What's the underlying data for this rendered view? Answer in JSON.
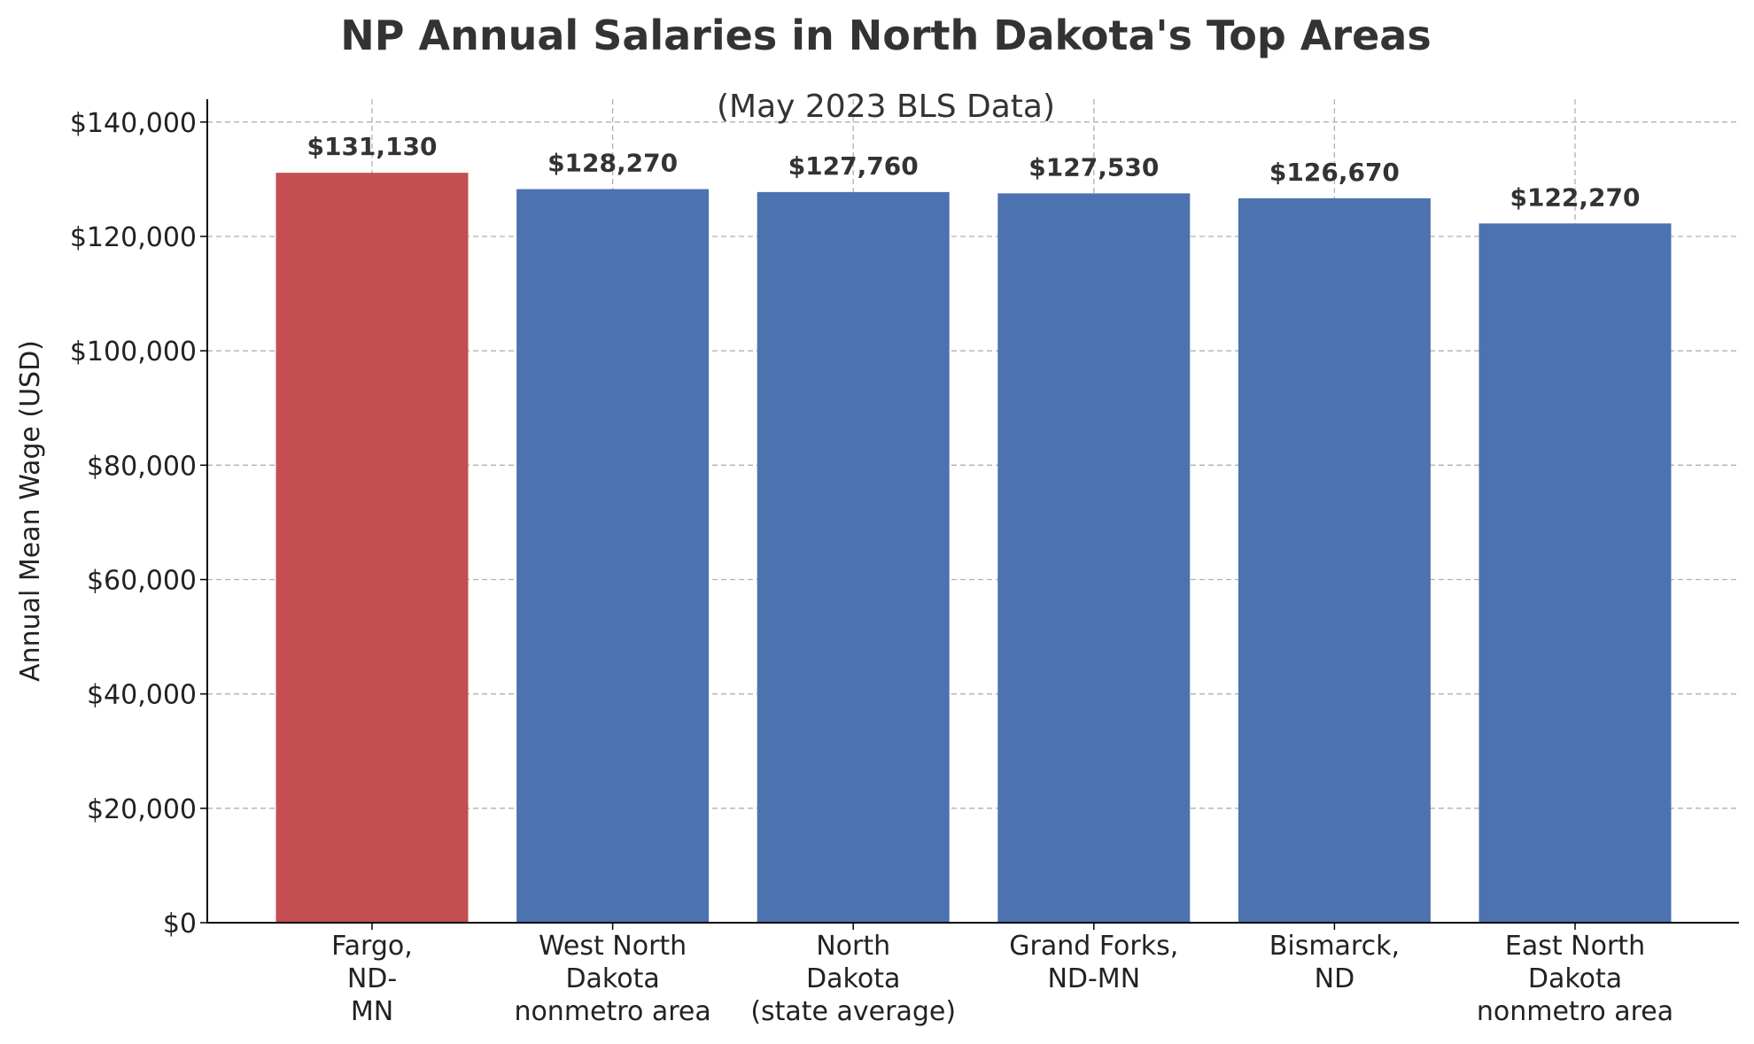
{
  "chart_data": {
    "type": "bar",
    "title": "NP Annual Salaries in North Dakota's Top Areas",
    "subtitle": "(May 2023 BLS Data)",
    "ylabel": "Annual Mean Wage (USD)",
    "xlabel": "",
    "ylim": [
      0,
      144000
    ],
    "yticks": [
      0,
      20000,
      40000,
      60000,
      80000,
      100000,
      120000,
      140000
    ],
    "ytick_labels": [
      "$0",
      "$20,000",
      "$40,000",
      "$60,000",
      "$80,000",
      "$100,000",
      "$120,000",
      "$140,000"
    ],
    "grid": true,
    "categories": [
      [
        "Fargo,",
        "ND-",
        "MN"
      ],
      [
        "West North",
        "Dakota",
        "nonmetro area"
      ],
      [
        "North",
        "Dakota",
        "(state average)"
      ],
      [
        "Grand Forks,",
        "ND-MN"
      ],
      [
        "Bismarck,",
        "ND"
      ],
      [
        "East North",
        "Dakota",
        "nonmetro area"
      ]
    ],
    "values": [
      131130,
      128270,
      127760,
      127530,
      126670,
      122270
    ],
    "value_labels": [
      "$131,130",
      "$128,270",
      "$127,760",
      "$127,530",
      "$126,670",
      "$122,270"
    ],
    "colors": [
      "#c44e52",
      "#4c72b0",
      "#4c72b0",
      "#4c72b0",
      "#4c72b0",
      "#4c72b0"
    ]
  }
}
